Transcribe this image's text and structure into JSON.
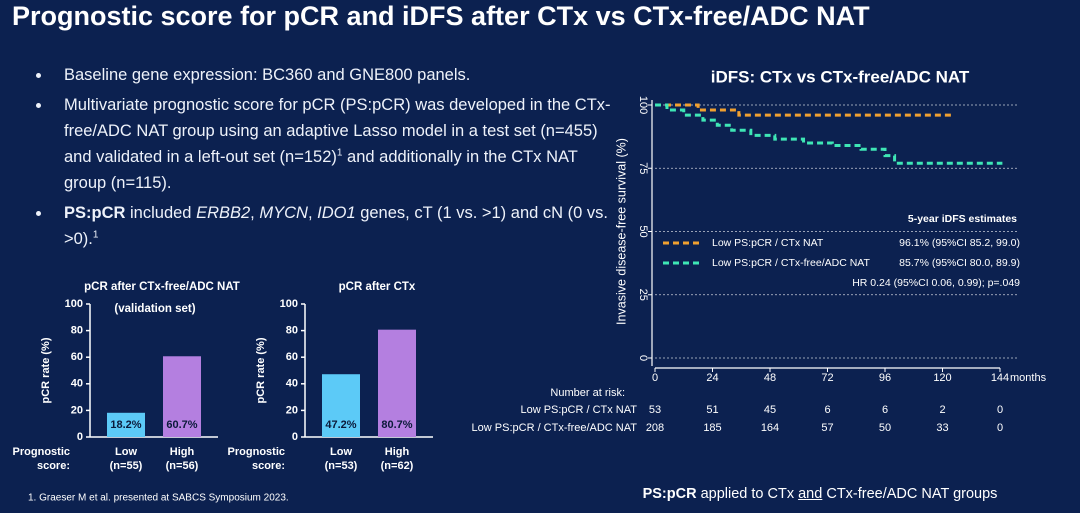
{
  "title": "Prognostic score for pCR and iDFS after CTx vs CTx-free/ADC NAT",
  "bullets": [
    [
      {
        "text": "Baseline gene expression: BC360 and GNE800 panels.",
        "style": "n"
      }
    ],
    [
      {
        "text": "Multivariate prognostic score for pCR (PS:pCR) was developed in the CTx-free/ADC NAT group using an adaptive Lasso model in a test set (n=455) and validated in a left-out set (n=152)",
        "style": "n"
      },
      {
        "text": "1",
        "style": "sup"
      },
      {
        "text": " and additionally in the CTx NAT group (n=115).",
        "style": "n"
      }
    ],
    [
      {
        "text": "PS:pCR",
        "style": "b"
      },
      {
        "text": " included ",
        "style": "n"
      },
      {
        "text": "ERBB2",
        "style": "i"
      },
      {
        "text": ", ",
        "style": "n"
      },
      {
        "text": "MYCN",
        "style": "i"
      },
      {
        "text": ", ",
        "style": "n"
      },
      {
        "text": "IDO1",
        "style": "i"
      },
      {
        "text": " genes, cT (1 vs. >1) and cN (0 vs. >0).",
        "style": "n"
      },
      {
        "text": "1",
        "style": "sup"
      }
    ]
  ],
  "footnote": "1. Graeser M et al. presented at SABCS Symposium 2023.",
  "bottom_note": [
    {
      "text": "PS:pCR",
      "style": "b"
    },
    {
      "text": " applied to CTx ",
      "style": "n"
    },
    {
      "text": "and",
      "style": "u"
    },
    {
      "text": " CTx-free/ADC NAT groups",
      "style": "n"
    }
  ],
  "chart_data": [
    {
      "type": "bar",
      "title": "pCR after CTx-free/ADC NAT",
      "subtitle": "(validation set)",
      "ylabel": "pCR rate (%)",
      "xlabel": [
        "Prognostic",
        "score:"
      ],
      "categories": [
        "Low",
        "High"
      ],
      "category_notes": [
        "(n=55)",
        "(n=56)"
      ],
      "values": [
        18.2,
        60.7
      ],
      "value_labels": [
        "18.2%",
        "60.7%"
      ],
      "colors": [
        "#5ccaf7",
        "#b47fe0"
      ],
      "ylim": [
        0,
        100
      ],
      "yticks": [
        0,
        20,
        40,
        60,
        80,
        100
      ]
    },
    {
      "type": "bar",
      "title": "pCR after CTx",
      "ylabel": "pCR rate (%)",
      "xlabel": [
        "Prognostic",
        "score:"
      ],
      "categories": [
        "Low",
        "High"
      ],
      "category_notes": [
        "(n=53)",
        "(n=62)"
      ],
      "values": [
        47.2,
        80.7
      ],
      "value_labels": [
        "47.2%",
        "80.7%"
      ],
      "colors": [
        "#5ccaf7",
        "#b47fe0"
      ],
      "ylim": [
        0,
        100
      ],
      "yticks": [
        0,
        20,
        40,
        60,
        80,
        100
      ]
    },
    {
      "type": "line",
      "title": "iDFS: CTx vs CTx-free/ADC NAT",
      "ylabel": "Invasive disease-free survival (%)",
      "xlabel": "months",
      "xlim": [
        0,
        144
      ],
      "xticks": [
        0,
        24,
        48,
        72,
        96,
        120,
        144
      ],
      "ylim": [
        0,
        100
      ],
      "yticks": [
        0,
        25,
        50,
        75,
        100
      ],
      "grid": true,
      "legend_title": "5-year iDFS estimates",
      "annotation": "HR 0.24 (95%CI 0.06, 0.99); p=.049",
      "series": [
        {
          "name": "Low PS:pCR / CTx NAT",
          "color": "#f0a030",
          "estimate": "96.1% (95%CI 85.2, 99.0)",
          "x": [
            0,
            18,
            18,
            35,
            35,
            125
          ],
          "values": [
            100,
            100,
            98,
            98,
            96,
            96
          ]
        },
        {
          "name": "Low PS:pCR / CTx-free/ADC NAT",
          "color": "#3ee6b5",
          "estimate": "85.7% (95%CI 80.0, 89.9)",
          "x": [
            0,
            5,
            5,
            12,
            12,
            20,
            20,
            26,
            26,
            32,
            32,
            40,
            40,
            50,
            50,
            62,
            62,
            74,
            74,
            86,
            86,
            96,
            96,
            100,
            100,
            145
          ],
          "values": [
            100,
            100,
            98,
            98,
            96,
            96,
            94,
            94,
            92,
            92,
            90,
            90,
            88,
            88,
            86.5,
            86.5,
            85,
            85,
            84,
            84,
            82.5,
            82.5,
            80,
            80,
            77,
            77
          ]
        }
      ],
      "risk_table": {
        "title": "Number at risk:",
        "rows": [
          {
            "label": "Low PS:pCR / CTx NAT",
            "values": [
              53,
              51,
              45,
              6,
              6,
              2,
              0
            ]
          },
          {
            "label": "Low PS:pCR / CTx-free/ADC NAT",
            "values": [
              208,
              185,
              164,
              57,
              50,
              33,
              0
            ]
          }
        ]
      }
    }
  ]
}
